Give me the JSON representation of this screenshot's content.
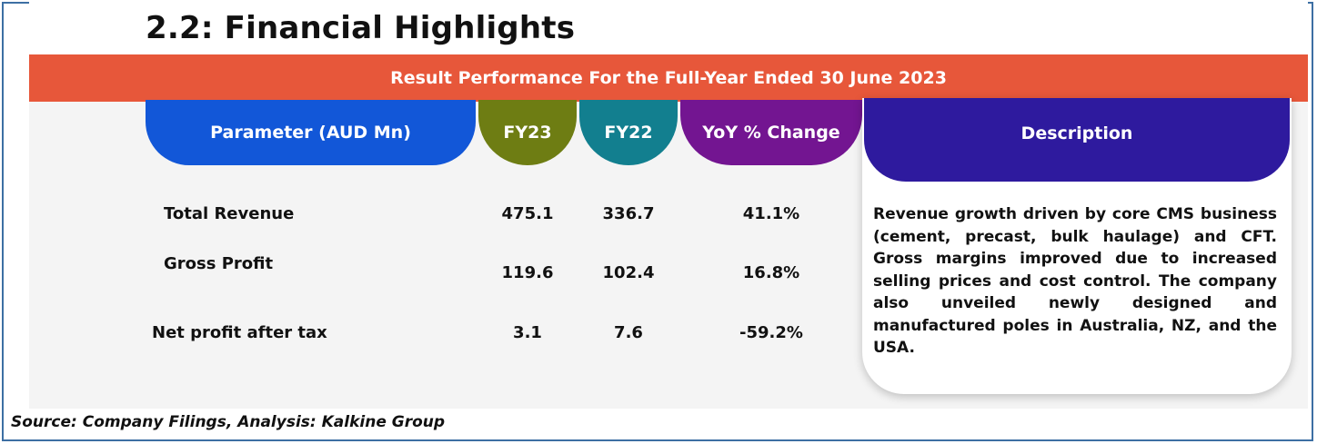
{
  "title": "2.2: Financial Highlights",
  "banner": "Result Performance For the Full-Year Ended 30 June 2023",
  "table": {
    "headers": {
      "parameter": "Parameter (AUD Mn)",
      "fy23": "FY23",
      "fy22": "FY22",
      "yoy": "YoY % Change",
      "description": "Description"
    },
    "rows": [
      {
        "parameter": "Total Revenue",
        "fy23": "475.1",
        "fy22": "336.7",
        "yoy": "41.1%"
      },
      {
        "parameter": "Gross Profit",
        "fy23": "119.6",
        "fy22": "102.4",
        "yoy": "16.8%"
      },
      {
        "parameter": "Net profit after tax",
        "fy23": "3.1",
        "fy22": "7.6",
        "yoy": "-59.2%"
      }
    ],
    "description": "Revenue growth driven by core CMS business (cement, precast, bulk haulage) and CFT. Gross margins improved due to increased selling prices and cost control. The company also unveiled newly designed and manufactured poles in Australia, NZ, and the USA."
  },
  "source": "Source: Company Filings, Analysis: Kalkine Group",
  "colors": {
    "banner": "#e7573a",
    "parameter_header": "#1257d8",
    "fy23_header": "#6e7d13",
    "fy22_header": "#127f8f",
    "yoy_header": "#731591",
    "description_header": "#2e1a9e",
    "frame_border": "#3d6fa3"
  }
}
